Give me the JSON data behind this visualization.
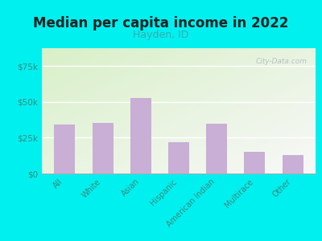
{
  "title": "Median per capita income in 2022",
  "subtitle": "Hayden, ID",
  "categories": [
    "All",
    "White",
    "Asian",
    "Hispanic",
    "American Indian",
    "Multirace",
    "Other"
  ],
  "values": [
    34000,
    35500,
    53000,
    22000,
    35000,
    15000,
    13000
  ],
  "bar_color": "#c9aed6",
  "background_outer": "#00f0f0",
  "title_fontsize": 12,
  "title_color": "#222222",
  "subtitle_fontsize": 9,
  "subtitle_color": "#3aacac",
  "tick_label_color": "#3a8a7a",
  "ylim": [
    0,
    87500
  ],
  "yticks": [
    0,
    25000,
    50000,
    75000
  ],
  "ytick_labels": [
    "$0",
    "$25k",
    "$50k",
    "$75k"
  ],
  "watermark": "City-Data.com",
  "bar_width": 0.55
}
